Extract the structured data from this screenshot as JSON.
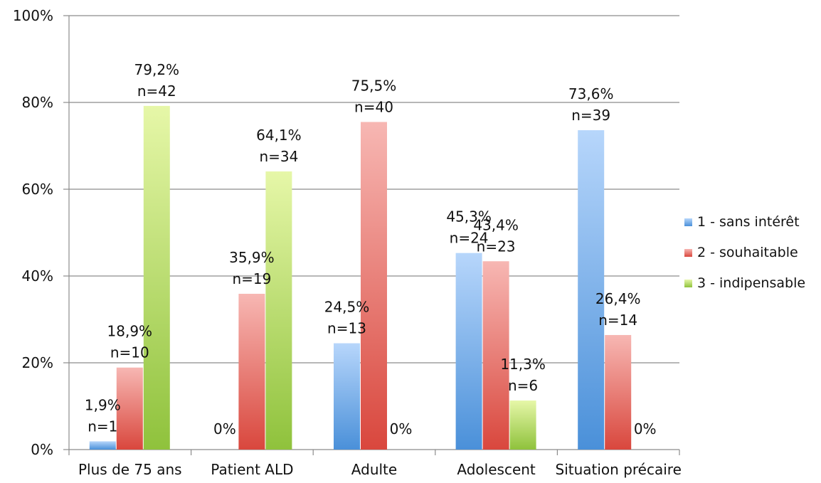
{
  "chart_data": {
    "type": "bar",
    "categories": [
      "Plus de 75 ans",
      "Patient ALD",
      "Adulte",
      "Adolescent",
      "Situation précaire"
    ],
    "ylim": [
      0,
      100
    ],
    "yticks": [
      "0%",
      "20%",
      "40%",
      "60%",
      "80%",
      "100%"
    ],
    "ytick_values": [
      0,
      20,
      40,
      60,
      80,
      100
    ],
    "grid": true,
    "legend_position": "right",
    "series": [
      {
        "name": "1 - sans intérêt",
        "color": "#5b9bd5",
        "values": [
          1.9,
          0,
          24.5,
          45.3,
          73.6
        ],
        "labels": [
          [
            "1,9%",
            "n=1"
          ],
          [
            "0%"
          ],
          [
            "24,5%",
            "n=13"
          ],
          [
            "45,3%",
            "n=24"
          ],
          [
            "73,6%",
            "n=39"
          ]
        ]
      },
      {
        "name": "2 - souhaitable",
        "color": "#e0534a",
        "values": [
          18.9,
          35.9,
          75.5,
          43.4,
          26.4
        ],
        "labels": [
          [
            "18,9%",
            "n=10"
          ],
          [
            "35,9%",
            "n=19"
          ],
          [
            "75,5%",
            "n=40"
          ],
          [
            "43,4%",
            "n=23"
          ],
          [
            "26,4%",
            "n=14"
          ]
        ]
      },
      {
        "name": "3 - indipensable",
        "color": "#9bcc4c",
        "values": [
          79.2,
          64.1,
          0,
          11.3,
          0
        ],
        "labels": [
          [
            "79,2%",
            "n=42"
          ],
          [
            "64,1%",
            "n=34"
          ],
          [
            "0%"
          ],
          [
            "11,3%",
            "n=6"
          ],
          [
            "0%"
          ]
        ]
      }
    ]
  }
}
